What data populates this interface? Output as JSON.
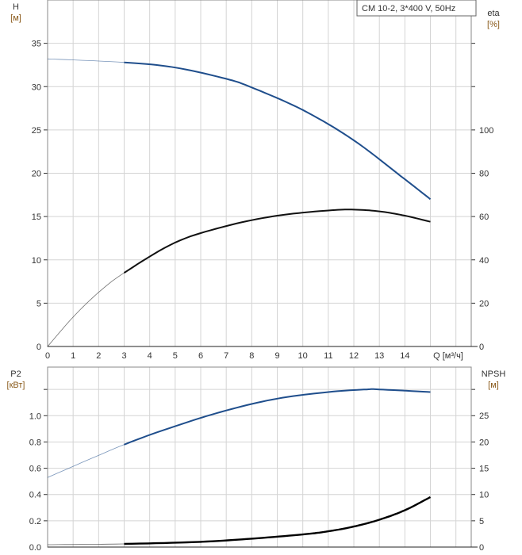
{
  "chart_data": [
    {
      "type": "line",
      "title": "CM 10-2, 3*400 V, 50Hz",
      "xlabel": "Q [м³/ч]",
      "xlim": [
        0,
        16.6
      ],
      "xticks": [
        0,
        1,
        2,
        3,
        4,
        5,
        6,
        7,
        8,
        9,
        10,
        11,
        12,
        13,
        14
      ],
      "y_left": {
        "label": "H",
        "unit": "[м]",
        "ylim": [
          0,
          40
        ],
        "ticks": [
          0,
          5,
          10,
          15,
          20,
          25,
          30,
          35
        ]
      },
      "y_right": {
        "label": "eta",
        "unit": "[%]",
        "ylim": [
          0,
          160
        ],
        "ticks": [
          0,
          20,
          40,
          60,
          80,
          100
        ]
      },
      "grid": true,
      "series": [
        {
          "name": "H",
          "axis": "left",
          "color": "#1f4e8c",
          "x": [
            0,
            3,
            5,
            7,
            8,
            10,
            12,
            14,
            15
          ],
          "y": [
            33.2,
            32.8,
            32.2,
            30.9,
            29.9,
            27.3,
            23.8,
            19.3,
            17.0
          ]
        },
        {
          "name": "eta",
          "axis": "right",
          "color": "#111111",
          "x": [
            0,
            1,
            2,
            3,
            5,
            7,
            9,
            11,
            12,
            13,
            14,
            15
          ],
          "y": [
            0,
            13.6,
            25,
            34,
            48,
            55.6,
            60.4,
            62.8,
            63.2,
            62.4,
            60.4,
            57.6
          ]
        }
      ]
    },
    {
      "type": "line",
      "xlim": [
        0,
        16.6
      ],
      "y_left": {
        "label": "P2",
        "unit": "[кВт]",
        "ylim": [
          0,
          1.37
        ],
        "ticks": [
          0.0,
          0.2,
          0.4,
          0.6,
          0.8,
          1.0
        ],
        "tick_labels": [
          "0.0",
          "0.2",
          "0.4",
          "0.6",
          "0.8",
          "1.0"
        ]
      },
      "y_right": {
        "label": "NPSH",
        "unit": "[м]",
        "ylim": [
          0,
          34.2
        ],
        "ticks": [
          0,
          5,
          10,
          15,
          20,
          25
        ]
      },
      "grid": true,
      "series": [
        {
          "name": "P2",
          "axis": "left",
          "color": "#1f4e8c",
          "x": [
            0,
            3,
            5,
            7,
            9,
            11,
            12.5,
            13,
            15
          ],
          "y": [
            0.53,
            0.78,
            0.92,
            1.04,
            1.13,
            1.18,
            1.2,
            1.2,
            1.18
          ]
        },
        {
          "name": "NPSH",
          "axis": "right",
          "color": "#000000",
          "x": [
            0,
            3,
            6,
            8,
            10,
            11,
            12,
            13,
            14,
            15
          ],
          "y": [
            0.45,
            0.6,
            1.0,
            1.6,
            2.4,
            3.0,
            3.9,
            5.2,
            7.0,
            9.5
          ]
        }
      ]
    }
  ]
}
